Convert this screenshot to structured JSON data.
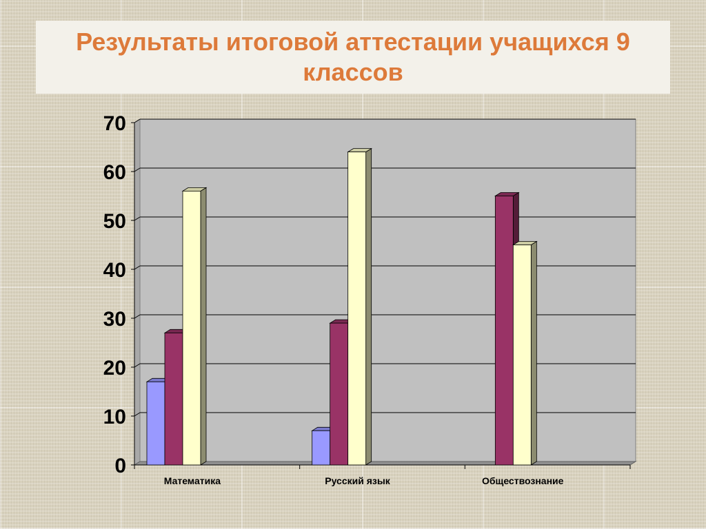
{
  "title": "Результаты итоговой аттестации учащихся 9 классов",
  "chart_data": {
    "type": "bar",
    "title": "Результаты итоговой аттестации учащихся 9 классов",
    "categories": [
      "Математика",
      "Русский язык",
      "Обществознание"
    ],
    "series": [
      {
        "values": [
          17,
          7,
          0
        ],
        "color": "#9999ff"
      },
      {
        "values": [
          27,
          29,
          55
        ],
        "color": "#993366"
      },
      {
        "values": [
          56,
          64,
          45
        ],
        "color": "#ffffcc"
      }
    ],
    "yticks": [
      0,
      10,
      20,
      30,
      40,
      50,
      60,
      70
    ],
    "ylim": [
      0,
      70
    ],
    "grid": true,
    "legend": "none",
    "style": "3d-column",
    "plot_background": "#c0c0c0"
  }
}
